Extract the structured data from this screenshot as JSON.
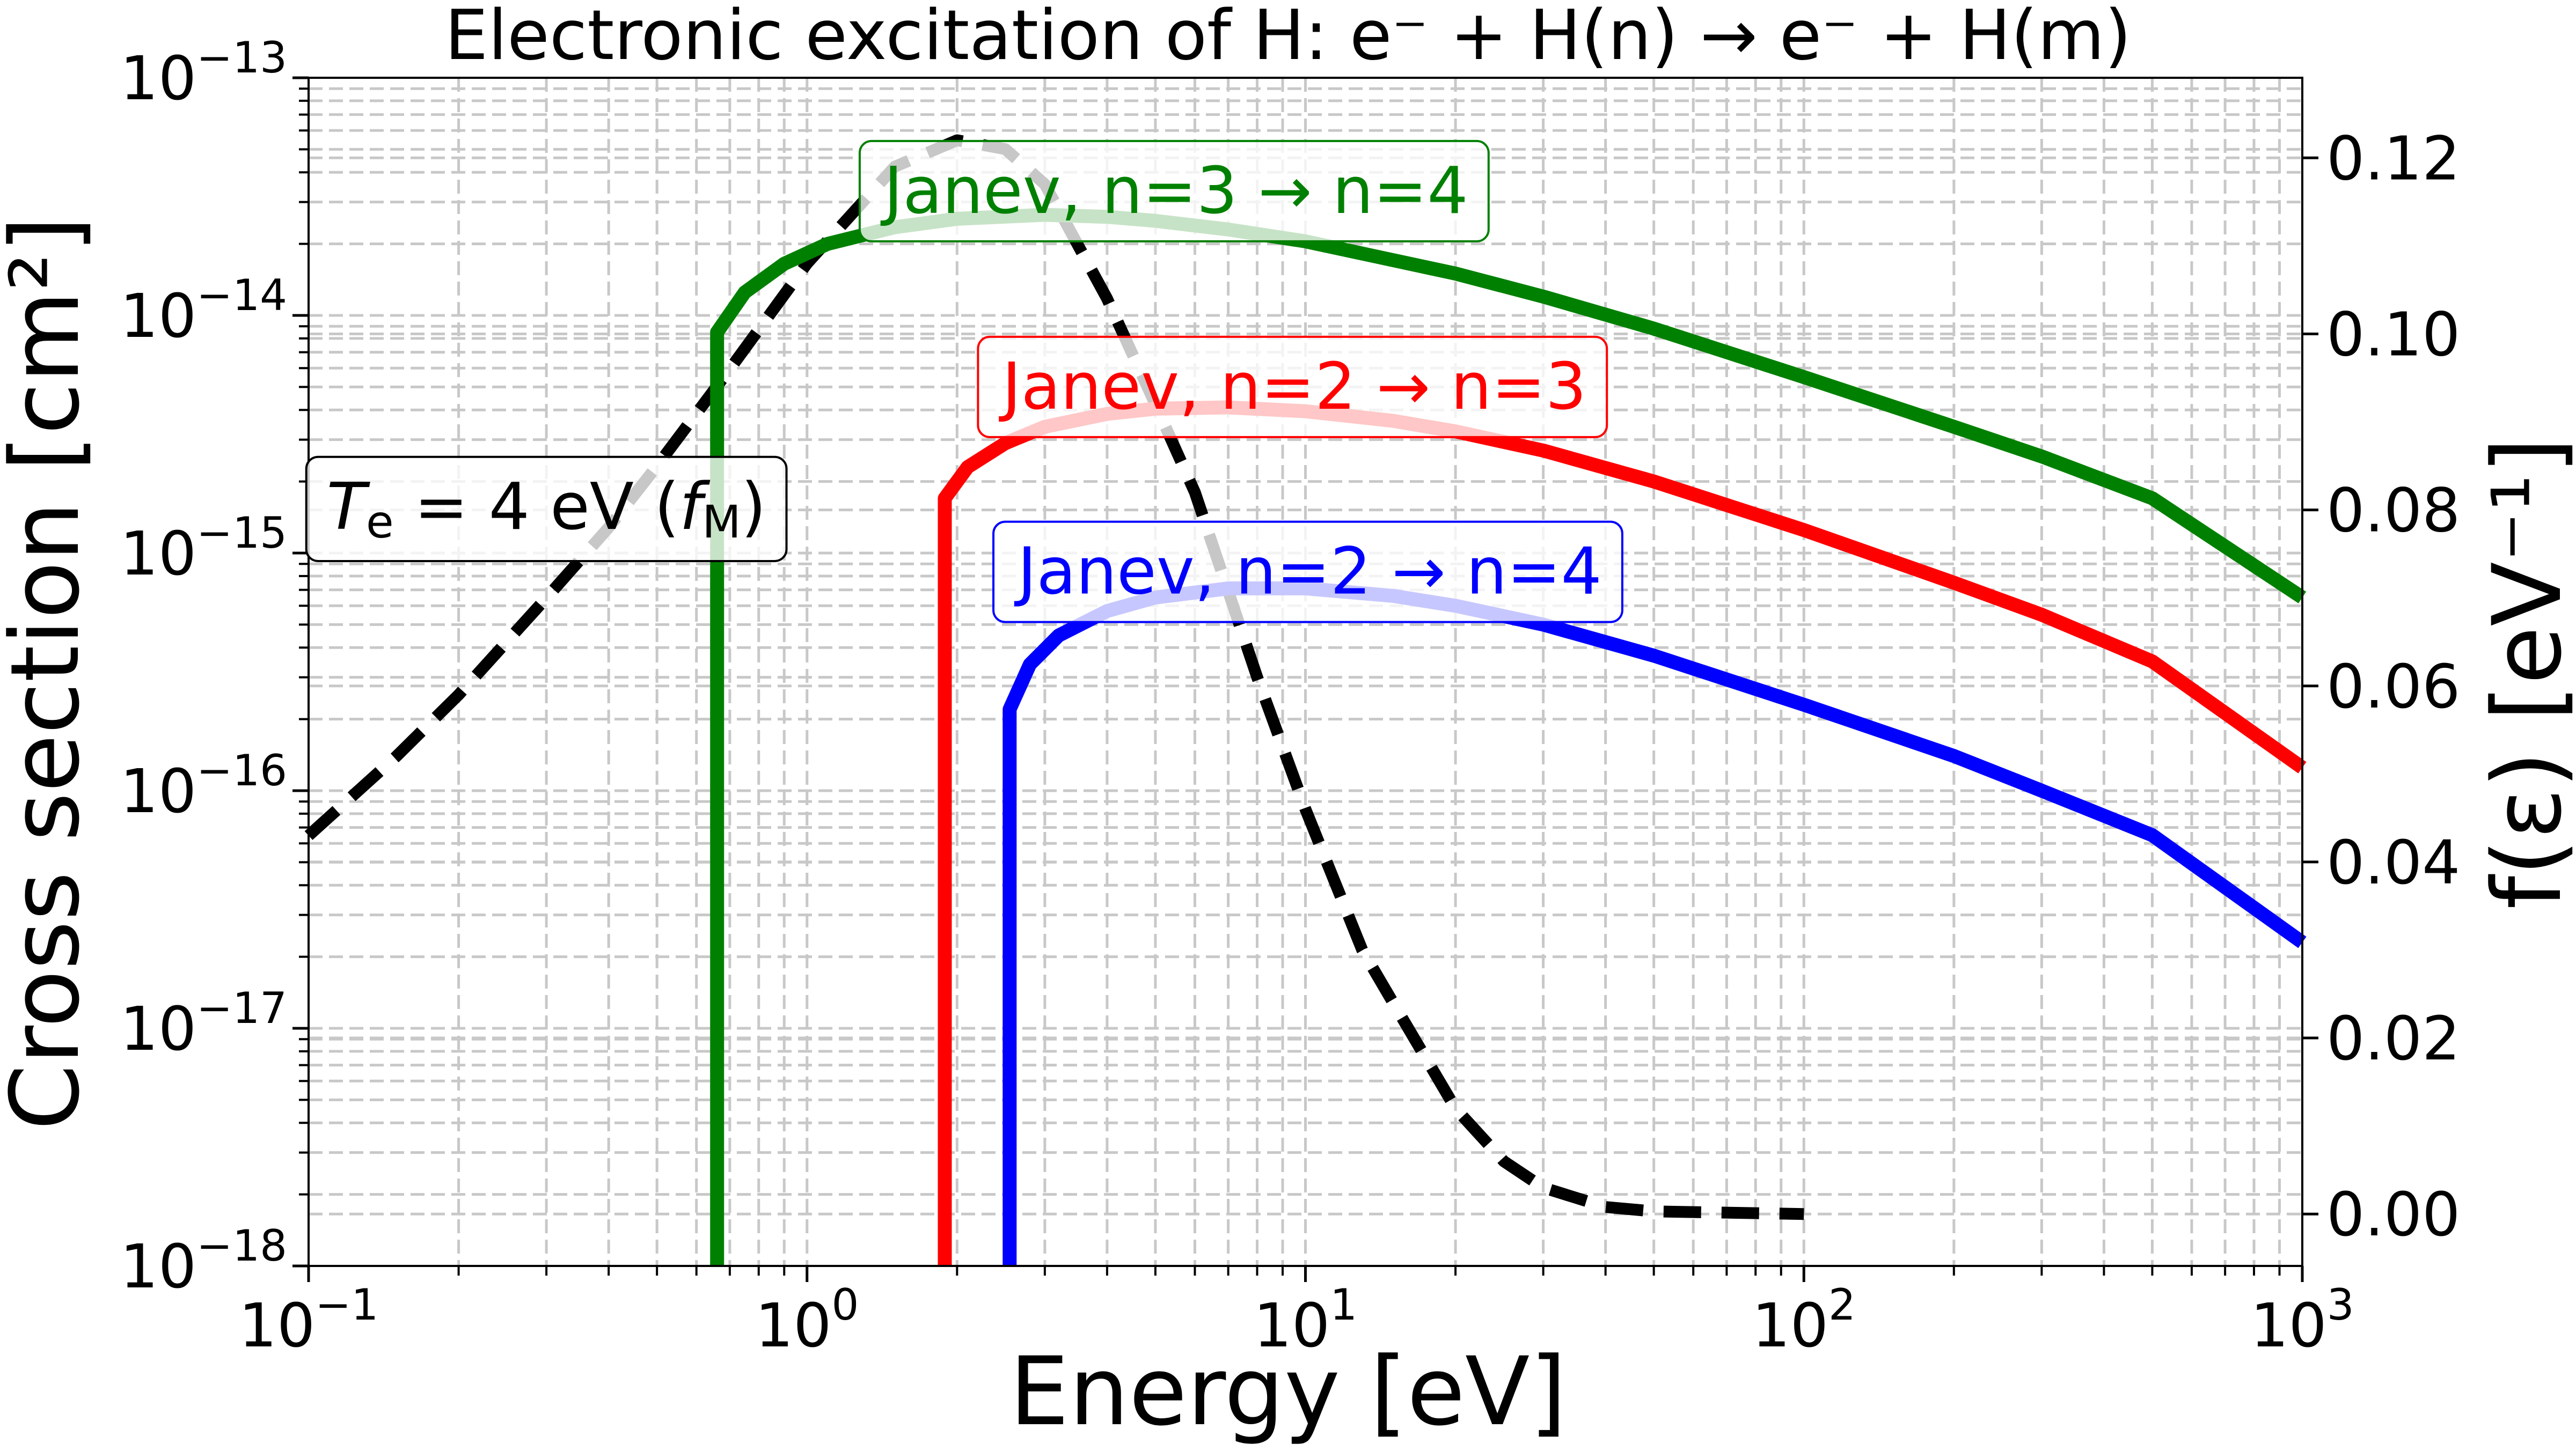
{
  "chart_data": {
    "type": "line",
    "title": "Electronic excitation of H: e⁻ + H(n) → e⁻ + H(m)",
    "xlabel": "Energy [eV]",
    "ylabel": "Cross section [cm²]",
    "y2label": "f(ε) [eV⁻¹]",
    "x_scale": "log",
    "y_scale": "log",
    "y2_scale": "linear",
    "xlim": [
      0.1,
      1000
    ],
    "ylim": [
      1e-18,
      1e-13
    ],
    "y2lim": [
      -0.0059,
      0.1291
    ],
    "grid": true,
    "x_ticks": [
      {
        "value": 0.1,
        "base": "10",
        "exp": "−1"
      },
      {
        "value": 1,
        "base": "10",
        "exp": "0"
      },
      {
        "value": 10,
        "base": "10",
        "exp": "1"
      },
      {
        "value": 100,
        "base": "10",
        "exp": "2"
      },
      {
        "value": 1000,
        "base": "10",
        "exp": "3"
      }
    ],
    "y_ticks": [
      {
        "value": 1e-18,
        "base": "10",
        "exp": "−18"
      },
      {
        "value": 1e-17,
        "base": "10",
        "exp": "−17"
      },
      {
        "value": 1e-16,
        "base": "10",
        "exp": "−16"
      },
      {
        "value": 1e-15,
        "base": "10",
        "exp": "−15"
      },
      {
        "value": 1e-14,
        "base": "10",
        "exp": "−14"
      },
      {
        "value": 1e-13,
        "base": "10",
        "exp": "−13"
      }
    ],
    "y2_ticks": [
      {
        "value": 0.0,
        "label": "0.00"
      },
      {
        "value": 0.02,
        "label": "0.02"
      },
      {
        "value": 0.04,
        "label": "0.04"
      },
      {
        "value": 0.06,
        "label": "0.06"
      },
      {
        "value": 0.08,
        "label": "0.08"
      },
      {
        "value": 0.1,
        "label": "0.10"
      },
      {
        "value": 0.12,
        "label": "0.12"
      }
    ],
    "series": [
      {
        "name": "Janev, n=3 → n=4",
        "color": "#008000",
        "axis": "left",
        "points": [
          [
            0.66,
            1e-18
          ],
          [
            0.66,
            8.5e-15
          ],
          [
            0.75,
            1.25e-14
          ],
          [
            0.9,
            1.65e-14
          ],
          [
            1.1,
            2e-14
          ],
          [
            1.5,
            2.35e-14
          ],
          [
            2,
            2.55e-14
          ],
          [
            3,
            2.65e-14
          ],
          [
            4,
            2.6e-14
          ],
          [
            5,
            2.5e-14
          ],
          [
            7,
            2.3e-14
          ],
          [
            10,
            2.05e-14
          ],
          [
            20,
            1.5e-14
          ],
          [
            30,
            1.2e-14
          ],
          [
            50,
            8.8e-15
          ],
          [
            100,
            5.5e-15
          ],
          [
            200,
            3.4e-15
          ],
          [
            300,
            2.55e-15
          ],
          [
            500,
            1.7e-15
          ],
          [
            1000,
            6.5e-16
          ]
        ]
      },
      {
        "name": "Janev, n=2 → n=3",
        "color": "#ff0000",
        "axis": "left",
        "points": [
          [
            1.89,
            1e-18
          ],
          [
            1.89,
            1.7e-15
          ],
          [
            2.1,
            2.3e-15
          ],
          [
            2.5,
            2.9e-15
          ],
          [
            3,
            3.4e-15
          ],
          [
            4,
            3.85e-15
          ],
          [
            5,
            4.05e-15
          ],
          [
            7,
            4.1e-15
          ],
          [
            10,
            3.95e-15
          ],
          [
            15,
            3.6e-15
          ],
          [
            20,
            3.25e-15
          ],
          [
            30,
            2.7e-15
          ],
          [
            50,
            2e-15
          ],
          [
            100,
            1.25e-15
          ],
          [
            200,
            7.5e-16
          ],
          [
            300,
            5.5e-16
          ],
          [
            500,
            3.5e-16
          ],
          [
            1000,
            1.25e-16
          ]
        ]
      },
      {
        "name": "Janev, n=2 → n=4",
        "color": "#0000ff",
        "axis": "left",
        "points": [
          [
            2.55,
            1e-18
          ],
          [
            2.55,
            2.2e-16
          ],
          [
            2.8,
            3.4e-16
          ],
          [
            3.2,
            4.5e-16
          ],
          [
            4,
            5.7e-16
          ],
          [
            5,
            6.5e-16
          ],
          [
            7,
            7.1e-16
          ],
          [
            10,
            7.1e-16
          ],
          [
            15,
            6.6e-16
          ],
          [
            20,
            6e-16
          ],
          [
            30,
            5e-16
          ],
          [
            50,
            3.7e-16
          ],
          [
            100,
            2.3e-16
          ],
          [
            200,
            1.4e-16
          ],
          [
            300,
            1e-16
          ],
          [
            500,
            6.5e-17
          ],
          [
            1000,
            2.3e-17
          ]
        ]
      },
      {
        "name": "Te = 4 eV (fM)",
        "color": "#000000",
        "axis": "right",
        "dashed": true,
        "points": [
          [
            0.1,
            0.043
          ],
          [
            0.15,
            0.052
          ],
          [
            0.2,
            0.059
          ],
          [
            0.3,
            0.07
          ],
          [
            0.4,
            0.078
          ],
          [
            0.5,
            0.085
          ],
          [
            0.7,
            0.096
          ],
          [
            1.0,
            0.108
          ],
          [
            1.5,
            0.119
          ],
          [
            2.0,
            0.122
          ],
          [
            2.5,
            0.121
          ],
          [
            3.0,
            0.117
          ],
          [
            4.0,
            0.104
          ],
          [
            5.0,
            0.092
          ],
          [
            6.0,
            0.082
          ],
          [
            8.0,
            0.061
          ],
          [
            10.0,
            0.046
          ],
          [
            13.0,
            0.03
          ],
          [
            15.0,
            0.024
          ],
          [
            20.0,
            0.012
          ],
          [
            25.0,
            0.006
          ],
          [
            30.0,
            0.003
          ],
          [
            40.0,
            0.0008
          ],
          [
            50.0,
            0.0003
          ],
          [
            100.0,
            0.0
          ]
        ]
      }
    ],
    "annotations": [
      {
        "text": "Janev, n=3 → n=4",
        "color": "#008000",
        "anchor": [
          5.5,
          3.2e-14
        ]
      },
      {
        "text": "Janev, n=2 → n=3",
        "color": "#ff0000",
        "anchor": [
          9.5,
          4.8e-15
        ]
      },
      {
        "text": "Janev, n=2 → n=4",
        "color": "#0000ff",
        "anchor": [
          10.2,
          8e-16
        ]
      },
      {
        "text": "Te = 4 eV (fM)",
        "color": "#000000",
        "anchor": [
          0.3,
          1.5e-15
        ],
        "math": {
          "t": "T",
          "t_sub": "e",
          "eq": " = 4 eV (",
          "f": "f",
          "f_sub": "M",
          "close": ")"
        }
      }
    ]
  }
}
